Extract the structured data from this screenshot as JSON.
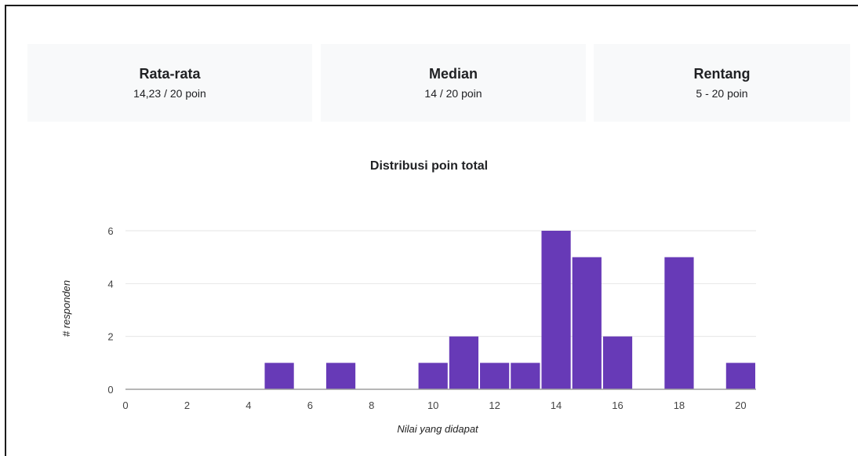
{
  "summary": {
    "mean": {
      "label": "Rata-rata",
      "value": "14,23 / 20 poin"
    },
    "median": {
      "label": "Median",
      "value": "14 / 20 poin"
    },
    "range": {
      "label": "Rentang",
      "value": "5 - 20 poin"
    }
  },
  "chart_data": {
    "type": "bar",
    "title": "Distribusi poin total",
    "xlabel": "Nilai yang didapat",
    "ylabel": "# responden",
    "xlim": [
      0,
      20.5
    ],
    "ylim": [
      0,
      6
    ],
    "xticks": [
      0,
      2,
      4,
      6,
      8,
      10,
      12,
      14,
      16,
      18,
      20
    ],
    "yticks": [
      0,
      2,
      4,
      6
    ],
    "grid": true,
    "color": "#673ab7",
    "bins": [
      {
        "x": 5,
        "count": 1
      },
      {
        "x": 7,
        "count": 1
      },
      {
        "x": 10,
        "count": 1
      },
      {
        "x": 11,
        "count": 2
      },
      {
        "x": 12,
        "count": 1
      },
      {
        "x": 13,
        "count": 1
      },
      {
        "x": 14,
        "count": 6
      },
      {
        "x": 15,
        "count": 5
      },
      {
        "x": 16,
        "count": 2
      },
      {
        "x": 18,
        "count": 5
      },
      {
        "x": 20,
        "count": 1
      }
    ]
  }
}
